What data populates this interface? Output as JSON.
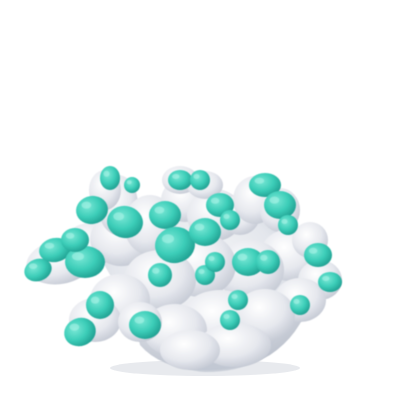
{
  "scene": {
    "subject": "coral-colony",
    "background_color": "#ffffff",
    "colors": {
      "base_light": "#f2f3f6",
      "base_mid": "#dcdfe6",
      "base_shadow": "#b9bfcb",
      "tip_light": "#5fe0cc",
      "tip_main": "#38cbb6",
      "tip_dark": "#23a697"
    }
  }
}
